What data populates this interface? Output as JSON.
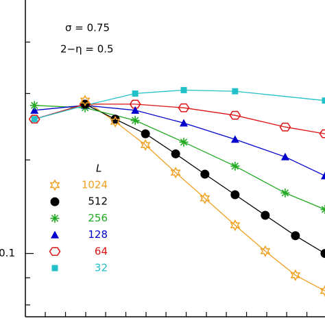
{
  "chart_data": {
    "type": "line",
    "log_y": true,
    "annotations": [
      "σ = 0.75",
      "2−η = 0.5"
    ],
    "legend_title": "L",
    "xlim": [
      0,
      9.93
    ],
    "xtick_marks": [
      0.66,
      1.33,
      2,
      2.66,
      3.33,
      4,
      4.66,
      5.33,
      6,
      6.66,
      7.33,
      8,
      8.66,
      9.33
    ],
    "ylim": [
      0.076,
      0.3
    ],
    "yticks": [
      0.1
    ],
    "ytick_marks": [
      0.08,
      0.09,
      0.15,
      0.2,
      0.25
    ],
    "series": [
      {
        "name": "1024",
        "color": "#f0a020",
        "marker": "star-open",
        "x": [
          1.98,
          2.98,
          3.98,
          4.98,
          5.95,
          6.95,
          7.95,
          8.95,
          9.93
        ],
        "values": [
          0.194,
          0.177,
          0.16,
          0.142,
          0.127,
          0.113,
          0.101,
          0.091,
          0.085
        ]
      },
      {
        "name": "512",
        "color": "#000000",
        "marker": "circle",
        "x": [
          1.98,
          2.98,
          3.98,
          4.98,
          5.95,
          6.95,
          7.95,
          8.95,
          9.93
        ],
        "values": [
          0.191,
          0.179,
          0.168,
          0.154,
          0.141,
          0.129,
          0.118,
          0.108,
          0.1
        ]
      },
      {
        "name": "256",
        "color": "#22aa22",
        "marker": "asterisk",
        "x": [
          0.3,
          1.98,
          3.64,
          5.25,
          6.95,
          8.61,
          9.93
        ],
        "values": [
          0.19,
          0.188,
          0.178,
          0.162,
          0.146,
          0.13,
          0.121
        ]
      },
      {
        "name": "128",
        "color": "#0000cc",
        "marker": "triangle",
        "x": [
          0.3,
          1.98,
          3.64,
          5.25,
          6.95,
          8.61,
          9.93
        ],
        "values": [
          0.186,
          0.19,
          0.186,
          0.176,
          0.164,
          0.152,
          0.14
        ]
      },
      {
        "name": "64",
        "color": "#dd1111",
        "marker": "hexagon-open",
        "x": [
          0.3,
          1.98,
          3.64,
          5.25,
          6.95,
          8.61,
          9.93
        ],
        "values": [
          0.179,
          0.191,
          0.191,
          0.188,
          0.182,
          0.173,
          0.168
        ]
      },
      {
        "name": "32",
        "color": "#22c0c8",
        "marker": "square",
        "x": [
          0.3,
          1.98,
          3.64,
          5.25,
          6.95,
          9.93
        ],
        "values": [
          0.179,
          0.19,
          0.2,
          0.203,
          0.202,
          0.194
        ]
      }
    ]
  }
}
